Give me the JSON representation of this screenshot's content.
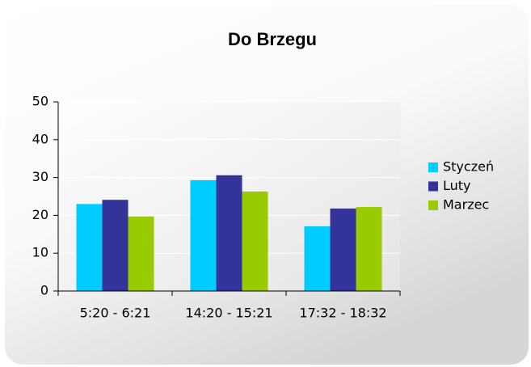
{
  "chart_data": {
    "type": "bar",
    "title": "Do Brzegu",
    "categories": [
      "5:20 - 6:21",
      "14:20 - 15:21",
      "17:32 - 18:32"
    ],
    "series": [
      {
        "name": "Styczeń",
        "color": "#00ccff",
        "values": [
          23,
          29.3,
          17.1
        ]
      },
      {
        "name": "Luty",
        "color": "#333399",
        "values": [
          24.1,
          30.6,
          21.8
        ]
      },
      {
        "name": "Marzec",
        "color": "#99cc00",
        "values": [
          19.7,
          26.3,
          22.2
        ]
      }
    ],
    "ylim": [
      0,
      50
    ],
    "yticks": [
      0,
      10,
      20,
      30,
      40,
      50
    ],
    "grid": true,
    "legend": "right"
  }
}
